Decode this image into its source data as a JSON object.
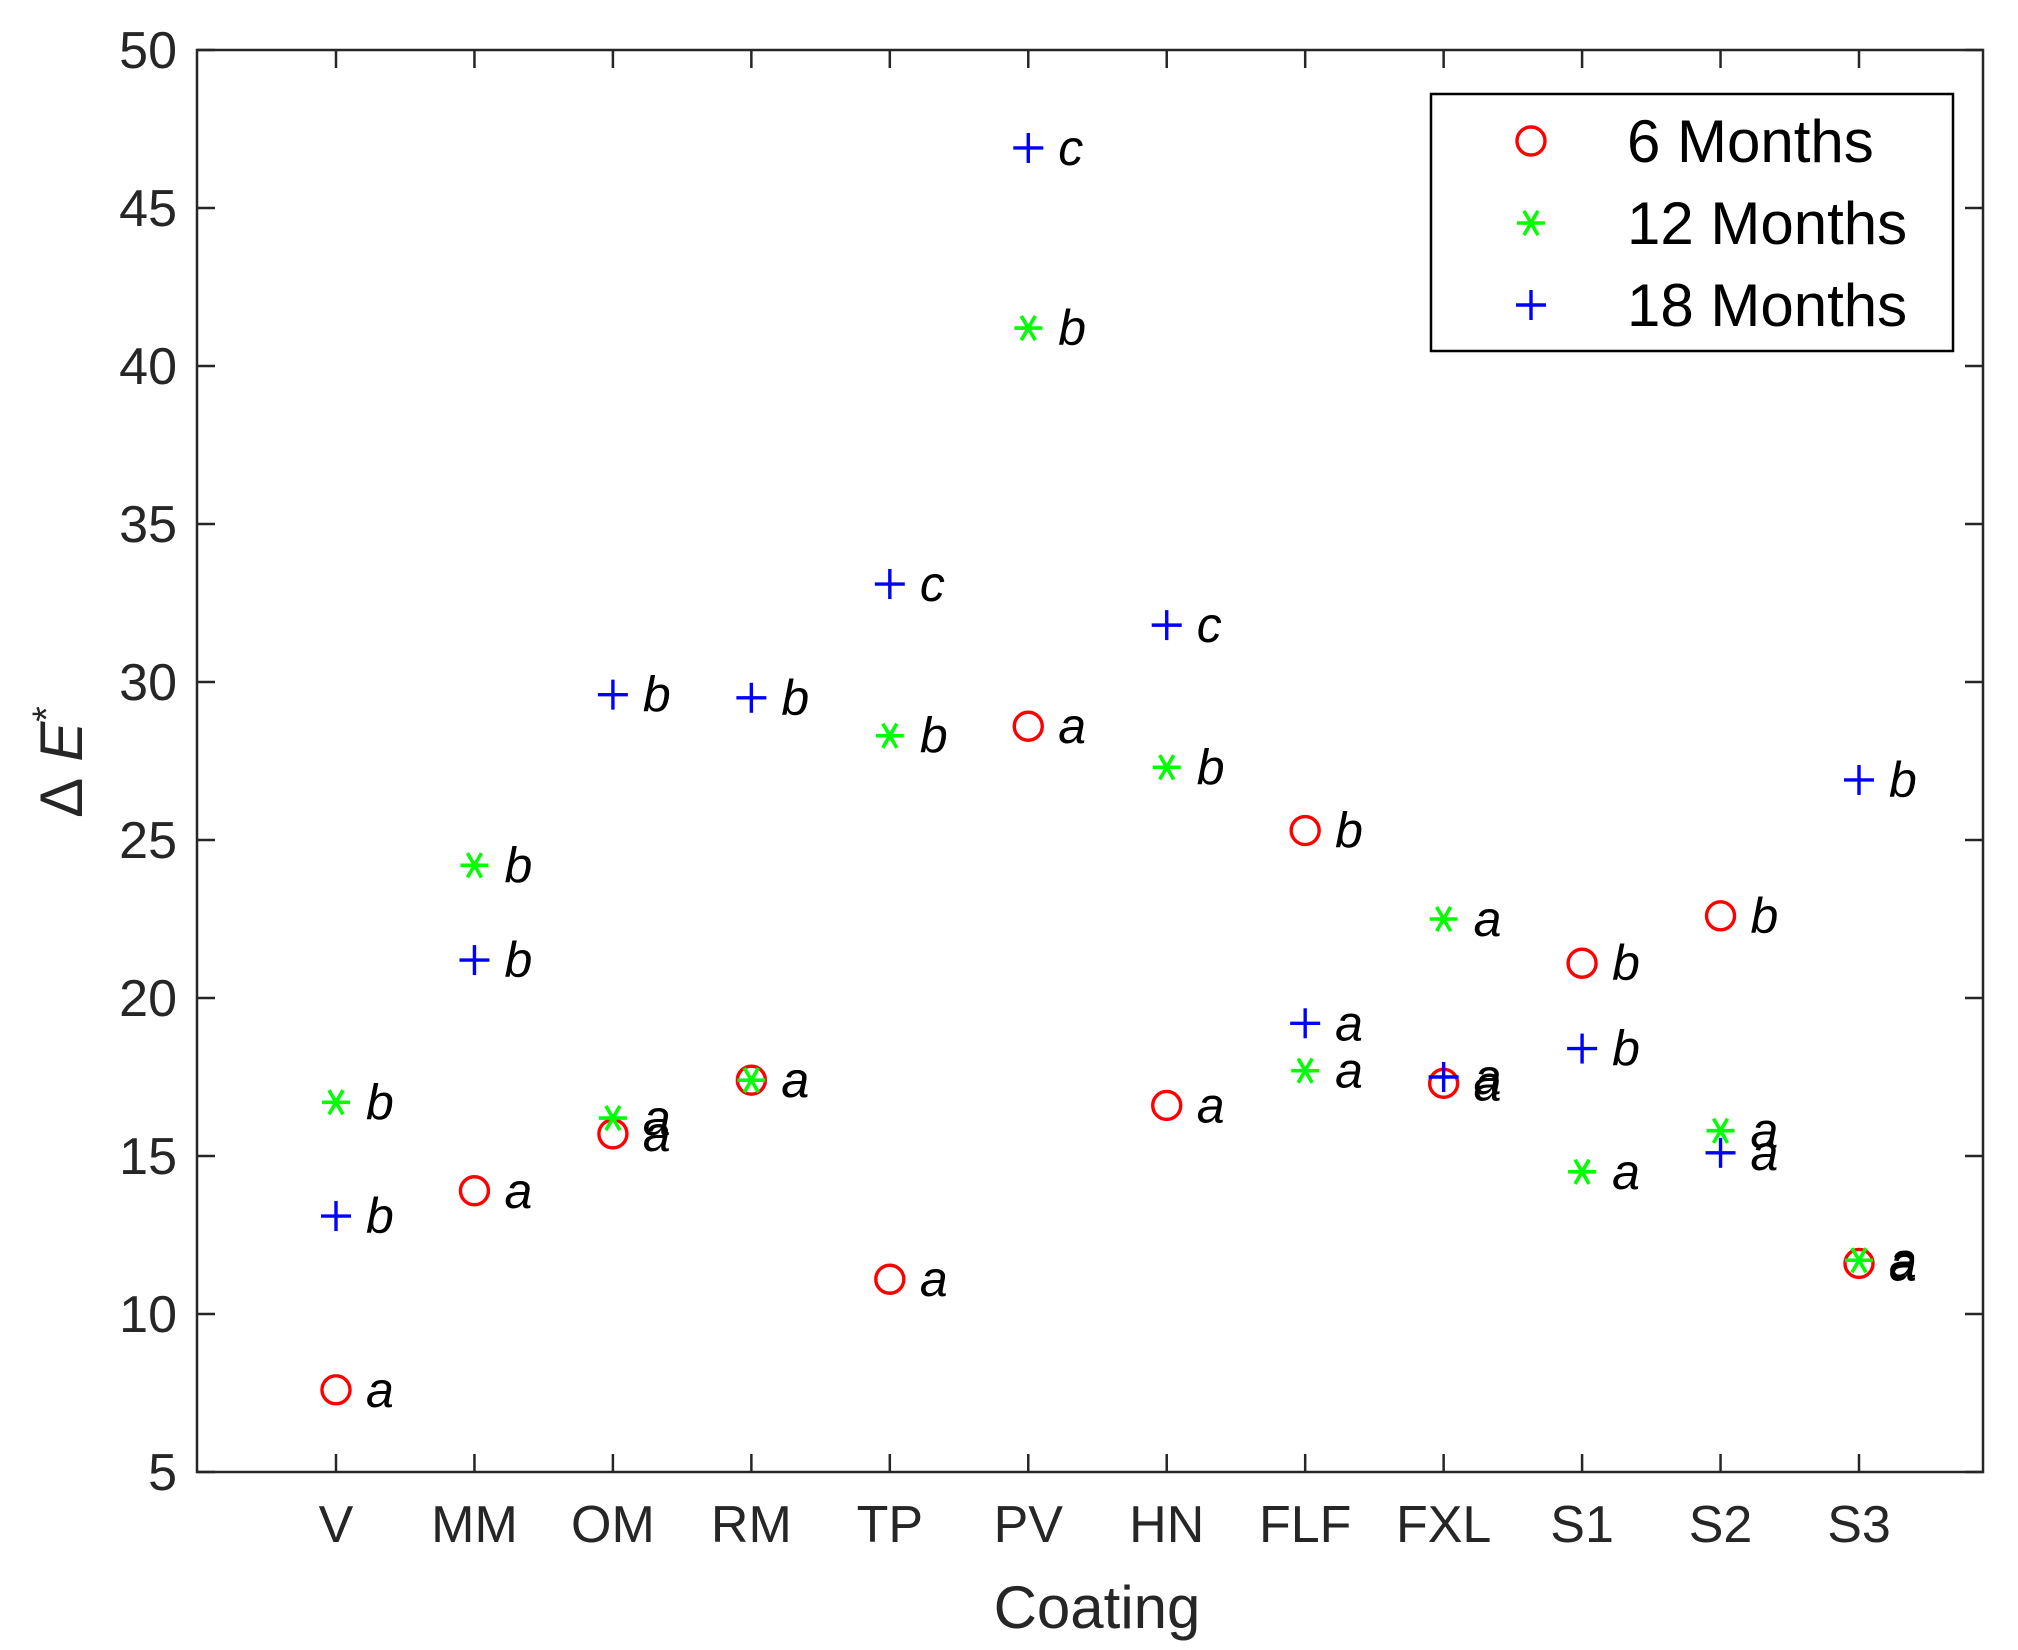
{
  "chart_data": {
    "type": "scatter",
    "xlabel": "Coating",
    "ylabel_prefix": "Δ",
    "ylabel_var": "E",
    "ylabel_sup": "*",
    "ylim": [
      5,
      50
    ],
    "yticks": [
      5,
      10,
      15,
      20,
      25,
      30,
      35,
      40,
      45,
      50
    ],
    "categories": [
      "V",
      "MM",
      "OM",
      "RM",
      "TP",
      "PV",
      "HN",
      "FLF",
      "FXL",
      "S1",
      "S2",
      "S3"
    ],
    "legend_position": "top-right",
    "series": [
      {
        "name": "6 Months",
        "marker": "circle",
        "color": "#ff0000",
        "values": [
          7.6,
          13.9,
          15.7,
          17.4,
          11.1,
          28.6,
          16.6,
          25.3,
          17.3,
          21.1,
          22.6,
          11.6
        ],
        "letters": [
          "a",
          "a",
          "a",
          "a",
          "a",
          "a",
          "a",
          "b",
          "a",
          "b",
          "b",
          "a"
        ]
      },
      {
        "name": "12 Months",
        "marker": "asterisk",
        "color": "#00ff00",
        "values": [
          16.7,
          24.2,
          16.2,
          17.4,
          28.3,
          41.2,
          27.3,
          17.7,
          22.5,
          14.5,
          15.8,
          11.7
        ],
        "letters": [
          "b",
          "b",
          "a",
          "a",
          "b",
          "b",
          "b",
          "a",
          "a",
          "a",
          "a",
          "a"
        ]
      },
      {
        "name": "18 Months",
        "marker": "plus",
        "color": "#0000ff",
        "values": [
          13.1,
          21.2,
          29.6,
          29.5,
          33.1,
          46.9,
          31.8,
          19.2,
          17.5,
          18.4,
          15.1,
          26.9
        ],
        "letters": [
          "b",
          "b",
          "b",
          "b",
          "c",
          "c",
          "c",
          "a",
          "a",
          "b",
          "a",
          "b"
        ]
      }
    ]
  }
}
